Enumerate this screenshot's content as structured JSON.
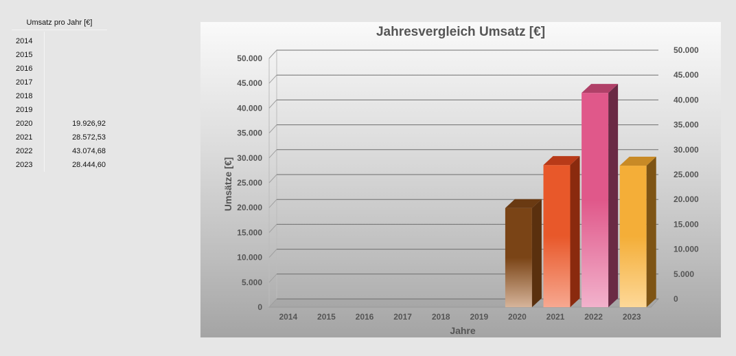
{
  "table": {
    "header": "Umsatz pro Jahr [€]",
    "rows": [
      {
        "year": "2014",
        "value": ""
      },
      {
        "year": "2015",
        "value": ""
      },
      {
        "year": "2016",
        "value": ""
      },
      {
        "year": "2017",
        "value": ""
      },
      {
        "year": "2018",
        "value": ""
      },
      {
        "year": "2019",
        "value": ""
      },
      {
        "year": "2020",
        "value": "19.926,92"
      },
      {
        "year": "2021",
        "value": "28.572,53"
      },
      {
        "year": "2022",
        "value": "43.074,68"
      },
      {
        "year": "2023",
        "value": "28.444,60"
      }
    ]
  },
  "chart_data": {
    "type": "bar",
    "title": "Jahresvergleich Umsatz [€]",
    "xlabel": "Jahre",
    "ylabel": "Umsätze [€]",
    "categories": [
      "2014",
      "2015",
      "2016",
      "2017",
      "2018",
      "2019",
      "2020",
      "2021",
      "2022",
      "2023"
    ],
    "values": [
      0,
      0,
      0,
      0,
      0,
      0,
      19926.92,
      28572.53,
      43074.68,
      28444.6
    ],
    "ylim": [
      0,
      50000
    ],
    "yticks": [
      "0",
      "5.000",
      "10.000",
      "15.000",
      "20.000",
      "25.000",
      "30.000",
      "35.000",
      "40.000",
      "45.000",
      "50.000"
    ],
    "grid": true,
    "legend": "none",
    "style": "3d-column",
    "bar_colors": [
      {
        "light": "#d6b49a",
        "mid": "#7a4416",
        "dark": "#5a300e",
        "top": "#6a3a12"
      },
      {
        "light": "#f7a890",
        "mid": "#e8582a",
        "dark": "#8a2a0e",
        "top": "#b83a18"
      },
      {
        "light": "#f2b2cc",
        "mid": "#e0588a",
        "dark": "#6a2a44",
        "top": "#b04068"
      },
      {
        "light": "#fdd898",
        "mid": "#f4ae38",
        "dark": "#7e5414",
        "top": "#c88a26"
      }
    ]
  }
}
